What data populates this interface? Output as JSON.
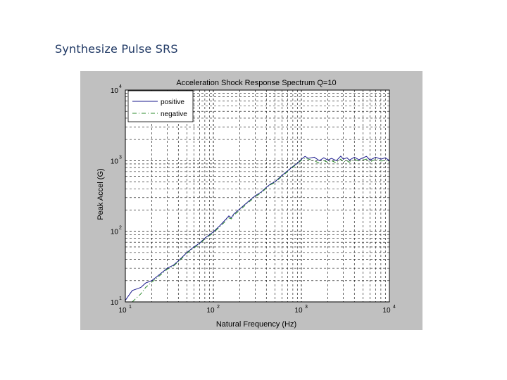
{
  "slide": {
    "title": "Synthesize Pulse SRS"
  },
  "colors": {
    "figure_bg": "#c0c0c0",
    "axes_bg": "#ffffff",
    "positive": "#1a1a8c",
    "negative": "#2e8b2e",
    "grid": "#000000"
  },
  "chart_data": {
    "type": "line",
    "title": "Acceleration Shock Response Spectrum Q=10",
    "xlabel": "Natural Frequency (Hz)",
    "ylabel": "Peak Accel (G)",
    "xscale": "log",
    "yscale": "log",
    "xlim": [
      10,
      10000
    ],
    "ylim": [
      10,
      10000
    ],
    "grid": true,
    "legend_position": "top-left",
    "x_ticks": [
      {
        "base": "10",
        "exp": "1"
      },
      {
        "base": "10",
        "exp": "2"
      },
      {
        "base": "10",
        "exp": "3"
      },
      {
        "base": "10",
        "exp": "4"
      }
    ],
    "y_ticks": [
      {
        "base": "10",
        "exp": "1"
      },
      {
        "base": "10",
        "exp": "2"
      },
      {
        "base": "10",
        "exp": "3"
      },
      {
        "base": "10",
        "exp": "4"
      }
    ],
    "series": [
      {
        "name": "positive",
        "style": "solid",
        "x": [
          10,
          11,
          12,
          13,
          15,
          17,
          20,
          25,
          30,
          35,
          40,
          50,
          60,
          70,
          80,
          100,
          120,
          140,
          150,
          160,
          170,
          200,
          250,
          300,
          350,
          400,
          450,
          500,
          600,
          700,
          800,
          900,
          1000,
          1100,
          1200,
          1400,
          1600,
          1800,
          2000,
          2200,
          2500,
          2800,
          3000,
          3300,
          3500,
          4000,
          4500,
          5000,
          5500,
          6000,
          7000,
          8000,
          9000,
          10000
        ],
        "y": [
          10.5,
          12.5,
          14.5,
          15.0,
          16.0,
          18.5,
          20.0,
          25.0,
          30.0,
          33.0,
          38.0,
          50.0,
          60.0,
          68.0,
          80.0,
          98.0,
          122.0,
          150.0,
          165.0,
          155.0,
          175.0,
          208.0,
          265.0,
          320.0,
          360.0,
          420.0,
          470.0,
          500.0,
          620.0,
          720.0,
          830.0,
          920.0,
          1050.0,
          1150.0,
          1080.0,
          1120.0,
          1000.0,
          1100.0,
          1020.0,
          1080.0,
          1000.0,
          1160.0,
          1050.0,
          1100.0,
          1020.0,
          1120.0,
          1030.0,
          1100.0,
          1150.0,
          1020.0,
          1120.0,
          1050.0,
          1100.0,
          1000.0
        ]
      },
      {
        "name": "negative",
        "style": "dashdot",
        "x": [
          12,
          13,
          15,
          17,
          20,
          25,
          30,
          35,
          40,
          50,
          60,
          70,
          80,
          100,
          120,
          140,
          150,
          160,
          170,
          200,
          250,
          300,
          350,
          400,
          450,
          500,
          600,
          700,
          800,
          900,
          1000,
          1100,
          1200,
          1400,
          1600,
          1800,
          2000,
          2200,
          2500,
          2800,
          3000,
          3300,
          3500,
          4000,
          4500,
          5000,
          5500,
          6000,
          7000,
          8000,
          9000,
          10000
        ],
        "y": [
          10.0,
          11.0,
          13.0,
          16.0,
          19.0,
          24.0,
          29.0,
          32.0,
          37.0,
          49.0,
          58.0,
          66.0,
          78.0,
          95.0,
          118.0,
          142.0,
          155.0,
          150.0,
          168.0,
          200.0,
          255.0,
          310.0,
          350.0,
          410.0,
          460.0,
          490.0,
          600.0,
          700.0,
          810.0,
          900.0,
          1020.0,
          1080.0,
          1050.0,
          1000.0,
          920.0,
          1000.0,
          950.0,
          1000.0,
          930.0,
          1050.0,
          960.0,
          1000.0,
          950.0,
          1050.0,
          980.0,
          1020.0,
          1050.0,
          960.0,
          1050.0,
          990.0,
          1000.0,
          950.0
        ]
      }
    ]
  }
}
